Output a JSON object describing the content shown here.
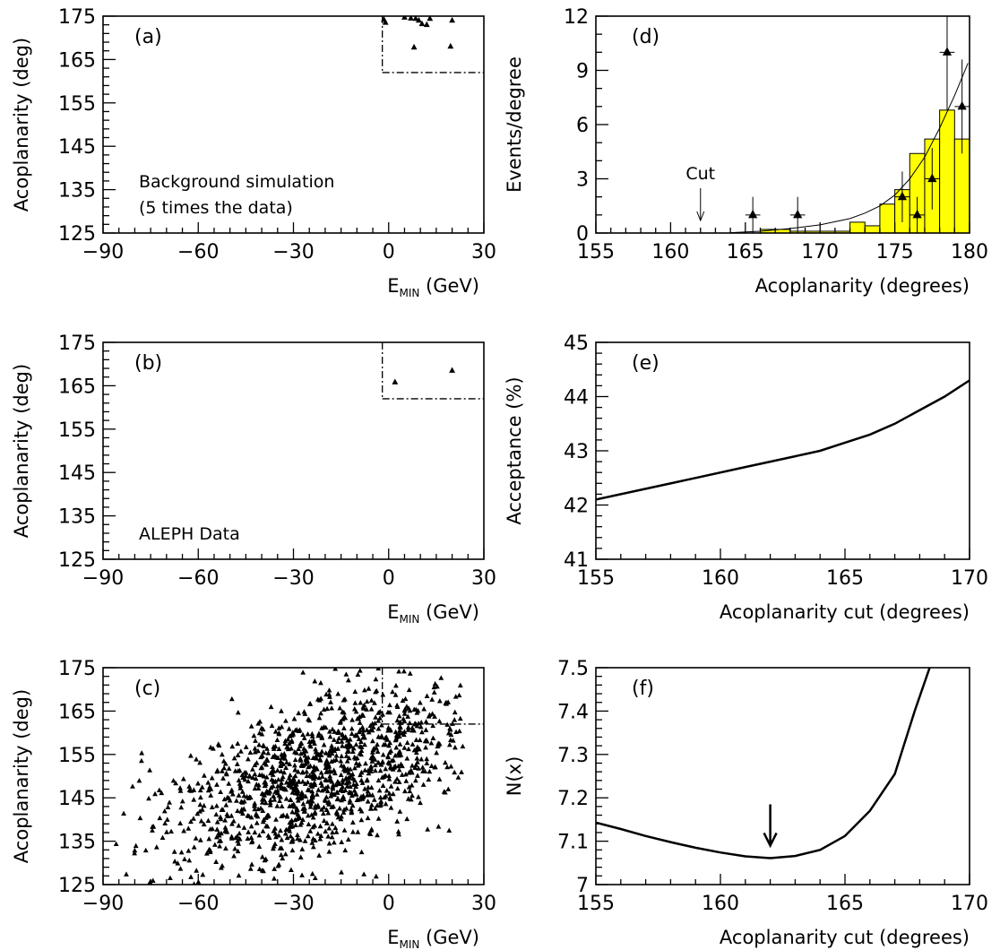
{
  "chart_data": [
    {
      "panel": "a",
      "type": "scatter",
      "tag": "(a)",
      "ylabel": "Acoplanarity (deg)",
      "xlabel_main": "E",
      "xlabel_sub": "MIN",
      "xlabel_unit": " (GeV)",
      "xlim": [
        -90,
        30
      ],
      "ylim": [
        125,
        175
      ],
      "xticks": [
        -90,
        -60,
        -30,
        0,
        30
      ],
      "yticks": [
        125,
        135,
        145,
        155,
        165,
        175
      ],
      "annotation_lines": [
        "Background simulation",
        "(5 times the data)"
      ],
      "cut_region": {
        "x_min": -2,
        "y_min": 162
      },
      "points": [
        {
          "x": -1.5,
          "y": 174.2
        },
        {
          "x": 5,
          "y": 174.7
        },
        {
          "x": 7,
          "y": 174.5
        },
        {
          "x": 8.5,
          "y": 174.4
        },
        {
          "x": 9.5,
          "y": 174.0
        },
        {
          "x": 10.5,
          "y": 173.2
        },
        {
          "x": 12,
          "y": 173.0
        },
        {
          "x": 13,
          "y": 174.4
        },
        {
          "x": 20,
          "y": 174.0
        },
        {
          "x": 8,
          "y": 167.8
        },
        {
          "x": 19.5,
          "y": 168.0
        },
        {
          "x": -1,
          "y": 173.5
        }
      ]
    },
    {
      "panel": "b",
      "type": "scatter",
      "tag": "(b)",
      "ylabel": "Acoplanarity (deg)",
      "xlabel_main": "E",
      "xlabel_sub": "MIN",
      "xlabel_unit": " (GeV)",
      "xlim": [
        -90,
        30
      ],
      "ylim": [
        125,
        175
      ],
      "xticks": [
        -90,
        -60,
        -30,
        0,
        30
      ],
      "yticks": [
        125,
        135,
        145,
        155,
        165,
        175
      ],
      "annotation_lines": [
        "ALEPH Data"
      ],
      "cut_region": {
        "x_min": -2,
        "y_min": 162
      },
      "points": [
        {
          "x": 2,
          "y": 165.8
        },
        {
          "x": 20,
          "y": 168.5
        }
      ]
    },
    {
      "panel": "c",
      "type": "scatter",
      "tag": "(c)",
      "ylabel": "Acoplanarity (deg)",
      "xlabel_main": "E",
      "xlabel_sub": "MIN",
      "xlabel_unit": " (GeV)",
      "xlim": [
        -90,
        30
      ],
      "ylim": [
        125,
        175
      ],
      "xticks": [
        -90,
        -60,
        -30,
        0,
        30
      ],
      "yticks": [
        125,
        135,
        145,
        155,
        165,
        175
      ],
      "cut_region": {
        "x_min": -2,
        "y_min": 162
      },
      "scatter_cloud": {
        "count": 1350,
        "x_center": -22,
        "x_sd": 25,
        "y_center": 150,
        "y_sd": 11,
        "correlation": 0.55
      }
    },
    {
      "panel": "d",
      "type": "histogram",
      "tag": "(d)",
      "ylabel": "Events/degree",
      "xlabel": "Acoplanarity (degrees)",
      "xlim": [
        155,
        180
      ],
      "ylim": [
        0,
        12
      ],
      "xticks": [
        155,
        160,
        165,
        170,
        175,
        180
      ],
      "yticks": [
        0,
        3,
        6,
        9,
        12
      ],
      "fill_color": "#ffff00",
      "cut_label": "Cut",
      "cut_x": 162,
      "bin_edges": [
        166,
        168,
        172,
        173,
        174,
        175,
        176,
        177,
        178,
        179,
        180
      ],
      "bin_values": [
        0.2,
        0.1,
        0.6,
        0.4,
        1.6,
        2.4,
        4.4,
        5.2,
        6.8,
        5.2
      ],
      "data_points": [
        {
          "x": 165.5,
          "y": 1,
          "err": 1,
          "xerr": 0.5
        },
        {
          "x": 168.5,
          "y": 1,
          "err": 1,
          "xerr": 0.5
        },
        {
          "x": 175.5,
          "y": 2,
          "err": 1.4,
          "xerr": 0.5
        },
        {
          "x": 176.5,
          "y": 1,
          "err": 1,
          "xerr": 0.5
        },
        {
          "x": 177.5,
          "y": 3,
          "err": 1.7,
          "xerr": 0.5
        },
        {
          "x": 178.5,
          "y": 10,
          "err": 3.2,
          "xerr": 0.5
        },
        {
          "x": 179.5,
          "y": 7,
          "err": 2.6,
          "xerr": 0.5
        }
      ],
      "fit_curve": [
        {
          "x": 164,
          "y": 0.02
        },
        {
          "x": 166,
          "y": 0.1
        },
        {
          "x": 168,
          "y": 0.25
        },
        {
          "x": 170,
          "y": 0.45
        },
        {
          "x": 172,
          "y": 0.8
        },
        {
          "x": 173,
          "y": 1.1
        },
        {
          "x": 174,
          "y": 1.5
        },
        {
          "x": 175,
          "y": 2.1
        },
        {
          "x": 176,
          "y": 3.0
        },
        {
          "x": 177,
          "y": 4.2
        },
        {
          "x": 178,
          "y": 5.8
        },
        {
          "x": 179,
          "y": 7.6
        },
        {
          "x": 179.9,
          "y": 9.4
        }
      ]
    },
    {
      "panel": "e",
      "type": "line",
      "tag": "(e)",
      "ylabel": "Acceptance (%)",
      "xlabel": "Acoplanarity cut (degrees)",
      "xlim": [
        155,
        170
      ],
      "ylim": [
        41,
        45
      ],
      "xticks": [
        155,
        160,
        165,
        170
      ],
      "yticks": [
        41,
        42,
        43,
        44,
        45
      ],
      "series": [
        {
          "values": [
            {
              "x": 155,
              "y": 42.1
            },
            {
              "x": 157,
              "y": 42.3
            },
            {
              "x": 159,
              "y": 42.5
            },
            {
              "x": 161,
              "y": 42.7
            },
            {
              "x": 163,
              "y": 42.9
            },
            {
              "x": 164,
              "y": 43.0
            },
            {
              "x": 165,
              "y": 43.15
            },
            {
              "x": 166,
              "y": 43.3
            },
            {
              "x": 167,
              "y": 43.5
            },
            {
              "x": 168,
              "y": 43.75
            },
            {
              "x": 169,
              "y": 44.0
            },
            {
              "x": 170,
              "y": 44.3
            }
          ]
        }
      ]
    },
    {
      "panel": "f",
      "type": "line",
      "tag": "(f)",
      "ylabel": "N(x)",
      "xlabel": "Acoplanarity cut (degrees)",
      "xlim": [
        155,
        170
      ],
      "ylim": [
        7,
        7.5
      ],
      "xticks": [
        155,
        160,
        165,
        170
      ],
      "yticks": [
        7,
        7.1,
        7.2,
        7.3,
        7.4,
        7.5
      ],
      "ytick_labels": [
        "7",
        "7.1",
        "7.2",
        "7.3",
        "7.4",
        "7.5"
      ],
      "arrow_x": 162,
      "series": [
        {
          "values": [
            {
              "x": 155,
              "y": 7.143
            },
            {
              "x": 156,
              "y": 7.128
            },
            {
              "x": 157,
              "y": 7.112
            },
            {
              "x": 158,
              "y": 7.098
            },
            {
              "x": 159,
              "y": 7.085
            },
            {
              "x": 160,
              "y": 7.074
            },
            {
              "x": 161,
              "y": 7.065
            },
            {
              "x": 162,
              "y": 7.061
            },
            {
              "x": 163,
              "y": 7.066
            },
            {
              "x": 164,
              "y": 7.08
            },
            {
              "x": 165,
              "y": 7.112
            },
            {
              "x": 166,
              "y": 7.17
            },
            {
              "x": 167,
              "y": 7.255
            },
            {
              "x": 167.8,
              "y": 7.4
            },
            {
              "x": 168.4,
              "y": 7.5
            }
          ]
        }
      ]
    }
  ]
}
